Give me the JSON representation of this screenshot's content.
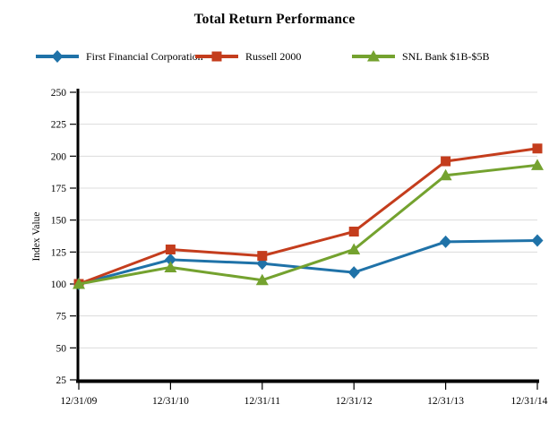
{
  "chart_data": {
    "type": "line",
    "title": "Total Return Performance",
    "xlabel": "",
    "ylabel": "Index Value",
    "x": [
      "12/31/09",
      "12/31/10",
      "12/31/11",
      "12/31/12",
      "12/31/13",
      "12/31/14"
    ],
    "series": [
      {
        "name": "First Financial Corporation",
        "marker": "diamond",
        "color": "#1F72A8",
        "values": [
          100,
          119,
          116,
          109,
          133,
          134
        ]
      },
      {
        "name": "Russell 2000",
        "marker": "square",
        "color": "#C43D1D",
        "values": [
          100,
          127,
          122,
          141,
          196,
          206
        ]
      },
      {
        "name": "SNL Bank $1B-$5B",
        "marker": "triangle",
        "color": "#74A22F",
        "values": [
          100,
          113,
          103,
          127,
          185,
          193
        ]
      }
    ],
    "ylim": [
      25,
      250
    ],
    "yticks": [
      25,
      50,
      75,
      100,
      125,
      150,
      175,
      200,
      225,
      250
    ],
    "grid": true,
    "legend_position": "top"
  },
  "colors": {
    "grid": "#DCDCDC",
    "axis": "#000000",
    "background": "#FFFFFF",
    "text": "#000000"
  }
}
